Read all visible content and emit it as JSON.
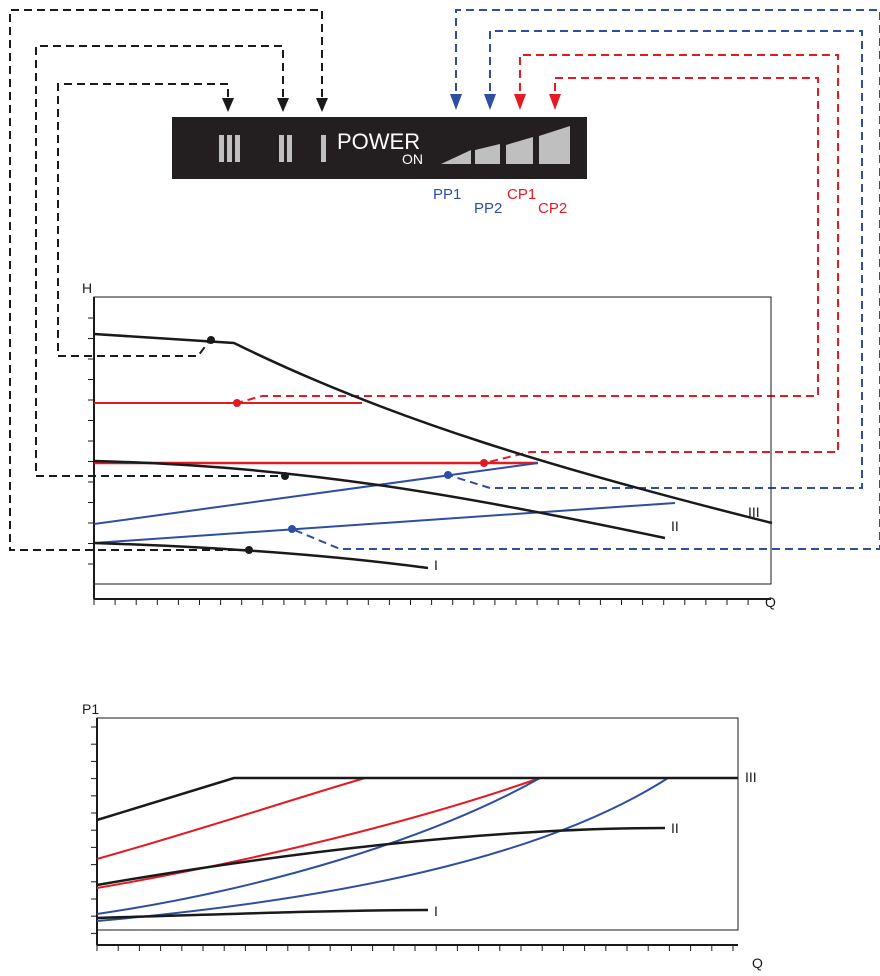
{
  "control_panel": {
    "speed_labels": [
      "III",
      "II",
      "I"
    ],
    "power_label": "POWER",
    "on_label": "ON"
  },
  "mode_labels": {
    "pp1": "PP1",
    "pp2": "PP2",
    "cp1": "CP1",
    "cp2": "CP2"
  },
  "head_chart": {
    "y_axis_label": "H",
    "x_axis_label": "Q",
    "curve_labels": {
      "speed_3": "III",
      "speed_2": "II",
      "speed_1": "I"
    }
  },
  "power_chart": {
    "y_axis_label": "P1",
    "x_axis_label": "Q",
    "curve_labels": {
      "speed_3": "III",
      "speed_2": "II",
      "speed_1": "I"
    }
  },
  "colors": {
    "black": "#1a1a1a",
    "constant_pressure_red": "#e21b23",
    "proportional_pressure_blue": "#2e4fa0",
    "panel_background": "#231f20",
    "panel_text": "#bfbfbf"
  }
}
